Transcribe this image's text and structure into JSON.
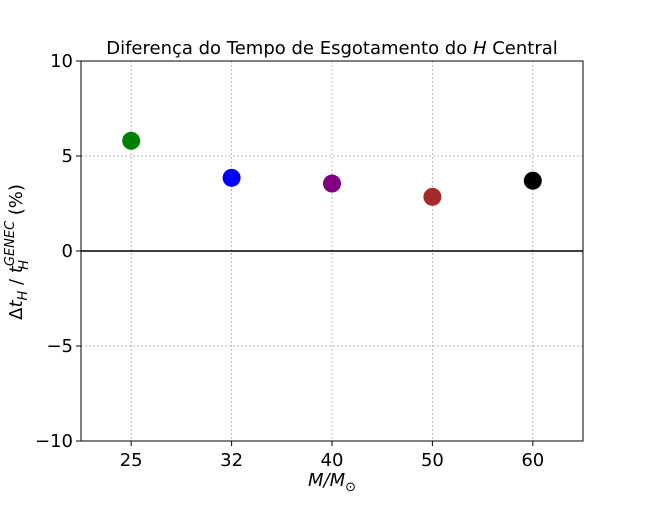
{
  "chart_data": {
    "type": "scatter",
    "title": "Diferença do Tempo de Esgotamento do H Central",
    "title_parts": {
      "prefix": "Diferença do Tempo de Esgotamento do ",
      "italic": "H",
      "suffix": " Central"
    },
    "xlabel_parts": {
      "M1": "M",
      "slash": "/",
      "M2": "M",
      "sub": "⊙"
    },
    "ylabel_parts": {
      "delta": "Δ",
      "t1": "t",
      "sub1": "H",
      "slash": " / ",
      "t2": "t",
      "sub2": "H",
      "sup": "GENEC",
      "unit": " (%)"
    },
    "categories": [
      "25",
      "32",
      "40",
      "50",
      "60"
    ],
    "values": [
      5.8,
      3.85,
      3.55,
      2.85,
      3.7
    ],
    "point_colors": [
      "#008000",
      "#0000ff",
      "#800080",
      "#a52a2a",
      "#000000"
    ],
    "ylim": [
      -10,
      10
    ],
    "yticks": [
      -10,
      -5,
      0,
      5,
      10
    ],
    "ytick_labels": [
      "−10",
      "−5",
      "0",
      "5",
      "10"
    ],
    "reference_line_y": 0,
    "grid": true
  }
}
